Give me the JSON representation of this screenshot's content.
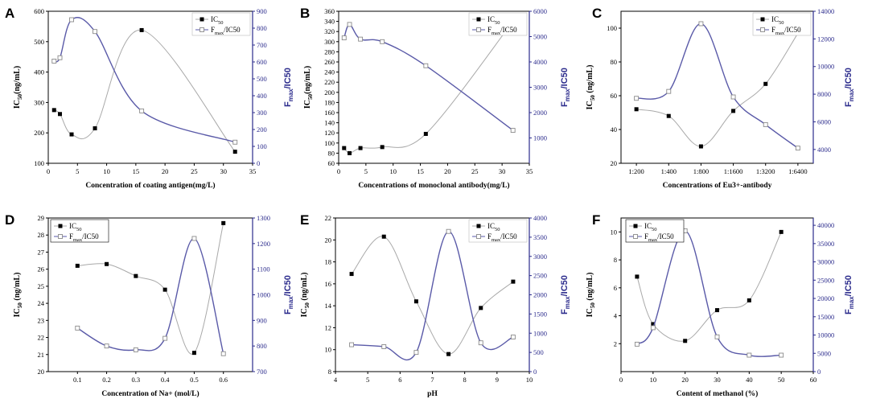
{
  "colors": {
    "s1": "#000000",
    "s2": "#5a5aa8",
    "line1": "#a9a9a9",
    "axis2": "#2b2b8c"
  },
  "chart_data": [
    {
      "type": "line",
      "panel": "A",
      "xlabel": "Concentration of coating antigen(mg/L)",
      "ylabel": "IC50(ng/mL)",
      "ylabel_main": "IC",
      "ylabel_sub": "50",
      "ylabel_tail": "(ng/mL)",
      "y2label": "Fmax/IC50",
      "y2label_main": "F",
      "y2label_sub": "max",
      "y2label_tail": "/IC50",
      "legend": [
        "IC50",
        "Fmax/IC50"
      ],
      "xlim": [
        0,
        35
      ],
      "xticks": [
        "0",
        "5",
        "10",
        "15",
        "20",
        "25",
        "30",
        "35"
      ],
      "ylim": [
        100,
        600
      ],
      "yticks": [
        "100",
        "200",
        "300",
        "400",
        "500",
        "600"
      ],
      "y2lim": [
        0,
        900
      ],
      "y2ticks": [
        "0",
        "100",
        "200",
        "300",
        "400",
        "500",
        "600",
        "700",
        "800",
        "900"
      ],
      "series": [
        {
          "name": "IC50",
          "axis": "left",
          "x": [
            1,
            2,
            4,
            8,
            16,
            32
          ],
          "values": [
            275,
            262,
            195,
            215,
            538,
            138
          ]
        },
        {
          "name": "Fmax/IC50",
          "axis": "right",
          "x": [
            1,
            2,
            4,
            8,
            16,
            32
          ],
          "values": [
            605,
            625,
            850,
            780,
            310,
            125
          ]
        }
      ]
    },
    {
      "type": "line",
      "panel": "B",
      "xlabel": "Concentrations of monoclonal antibody(mg/L)",
      "ylabel": "IC50(ng/mL)",
      "ylabel_main": "IC",
      "ylabel_sub": "50",
      "ylabel_tail": "(ng/mL)",
      "y2label": "Fmax/IC50",
      "y2label_main": "F",
      "y2label_sub": "max",
      "y2label_tail": "/IC50",
      "legend": [
        "IC50",
        "Fmax/IC50"
      ],
      "xlim": [
        0,
        35
      ],
      "xticks": [
        "0",
        "5",
        "10",
        "15",
        "20",
        "25",
        "30",
        "35"
      ],
      "ylim": [
        60,
        360
      ],
      "yticks": [
        "60",
        "80",
        "100",
        "120",
        "140",
        "160",
        "180",
        "200",
        "220",
        "240",
        "260",
        "280",
        "300",
        "320",
        "340",
        "360"
      ],
      "y2lim": [
        0,
        6000
      ],
      "y2ticks": [
        "1000",
        "2000",
        "3000",
        "4000",
        "5000",
        "6000"
      ],
      "series": [
        {
          "name": "IC50",
          "axis": "left",
          "x": [
            1,
            2,
            4,
            8,
            16,
            32
          ],
          "values": [
            90,
            80,
            90,
            92,
            118,
            340
          ]
        },
        {
          "name": "Fmax/IC50",
          "axis": "right",
          "x": [
            1,
            2,
            4,
            8,
            16,
            32
          ],
          "values": [
            4950,
            5480,
            4900,
            4800,
            3850,
            1300
          ]
        }
      ]
    },
    {
      "type": "line",
      "panel": "C",
      "xlabel": "Concentrations of Eu3+-antibody",
      "ylabel": "IC50 (ng/mL)",
      "ylabel_main": "IC",
      "ylabel_sub": "50",
      "ylabel_tail": " (ng/mL)",
      "y2label": "Fmax/IC50",
      "y2label_main": "F",
      "y2label_sub": "max",
      "y2label_tail": "/IC50",
      "legend": [
        "IC50",
        "Fmax/IC50"
      ],
      "categories": [
        "1:200",
        "1:400",
        "1:800",
        "1:1600",
        "1:3200",
        "1:6400"
      ],
      "ylim": [
        20,
        110
      ],
      "yticks": [
        "20",
        "40",
        "60",
        "80",
        "100"
      ],
      "y2lim": [
        3000,
        14000
      ],
      "y2ticks": [
        "4000",
        "6000",
        "8000",
        "10000",
        "12000",
        "14000"
      ],
      "series": [
        {
          "name": "IC50",
          "axis": "left",
          "values": [
            52,
            48,
            30,
            51,
            67,
            97
          ]
        },
        {
          "name": "Fmax/IC50",
          "axis": "right",
          "values": [
            7700,
            8200,
            13100,
            7800,
            5800,
            4100
          ]
        }
      ]
    },
    {
      "type": "line",
      "panel": "D",
      "xlabel": "Concentration of Na+ (mol/L)",
      "ylabel": "IC50 (ng/mL)",
      "ylabel_main": "IC",
      "ylabel_sub": "50",
      "ylabel_tail": " (ng/mL)",
      "y2label": "Fmax/IC50",
      "y2label_main": "F",
      "y2label_sub": "max",
      "y2label_tail": "/IC50",
      "legend": [
        "IC50",
        "Fmax/IC50"
      ],
      "xlim": [
        0.0,
        0.7
      ],
      "xticks": [
        "0.1",
        "0.2",
        "0.3",
        "0.4",
        "0.5",
        "0.6"
      ],
      "ylim": [
        20,
        29
      ],
      "yticks": [
        "20",
        "21",
        "22",
        "23",
        "24",
        "25",
        "26",
        "27",
        "28",
        "29"
      ],
      "y2lim": [
        700,
        1300
      ],
      "y2ticks": [
        "700",
        "800",
        "900",
        "1000",
        "1100",
        "1200",
        "1300"
      ],
      "series": [
        {
          "name": "IC50",
          "axis": "left",
          "x": [
            0.1,
            0.2,
            0.3,
            0.4,
            0.5,
            0.6
          ],
          "values": [
            26.2,
            26.3,
            25.6,
            24.8,
            21.1,
            28.7
          ]
        },
        {
          "name": "Fmax/IC50",
          "axis": "right",
          "x": [
            0.1,
            0.2,
            0.3,
            0.4,
            0.5,
            0.6
          ],
          "values": [
            870,
            800,
            785,
            830,
            1220,
            770
          ]
        }
      ]
    },
    {
      "type": "line",
      "panel": "E",
      "xlabel": "pH",
      "ylabel": "IC50 (ng/mL)",
      "ylabel_main": "IC",
      "ylabel_sub": "50",
      "ylabel_tail": " (ng/mL)",
      "y2label": "Fmax/IC50",
      "y2label_main": "F",
      "y2label_sub": "max",
      "y2label_tail": "/IC50",
      "legend": [
        "IC50",
        "Fmax/IC50"
      ],
      "xlim": [
        4,
        10
      ],
      "xticks": [
        "4",
        "5",
        "6",
        "7",
        "8",
        "9",
        "10"
      ],
      "ylim": [
        8,
        22
      ],
      "yticks": [
        "8",
        "10",
        "12",
        "14",
        "16",
        "18",
        "20",
        "22"
      ],
      "y2lim": [
        0,
        4000
      ],
      "y2ticks": [
        "0",
        "500",
        "1000",
        "1500",
        "2000",
        "2500",
        "3000",
        "3500",
        "4000"
      ],
      "series": [
        {
          "name": "IC50",
          "axis": "left",
          "x": [
            4.5,
            5.5,
            6.5,
            7.5,
            8.5,
            9.5
          ],
          "values": [
            16.9,
            20.3,
            14.4,
            9.6,
            13.8,
            16.2
          ]
        },
        {
          "name": "Fmax/IC50",
          "axis": "right",
          "x": [
            4.5,
            5.5,
            6.5,
            7.5,
            8.5,
            9.5
          ],
          "values": [
            700,
            650,
            500,
            3650,
            750,
            900
          ]
        }
      ]
    },
    {
      "type": "line",
      "panel": "F",
      "xlabel": "Content of methanol (%)",
      "ylabel": "IC50 (ng/mL)",
      "ylabel_main": "IC",
      "ylabel_sub": "50",
      "ylabel_tail": " (ng/mL)",
      "y2label": "Fmax/IC50",
      "y2label_main": "F",
      "y2label_sub": "max",
      "y2label_tail": "/IC50",
      "legend": [
        "IC50",
        "Fmax/IC50"
      ],
      "xlim": [
        0,
        60
      ],
      "xticks": [
        "0",
        "10",
        "20",
        "30",
        "40",
        "50",
        "60"
      ],
      "ylim": [
        0,
        11
      ],
      "yticks": [
        "2",
        "4",
        "6",
        "8",
        "10"
      ],
      "y2lim": [
        0,
        42000
      ],
      "y2ticks": [
        "0",
        "5000",
        "10000",
        "15000",
        "20000",
        "25000",
        "30000",
        "35000",
        "40000"
      ],
      "series": [
        {
          "name": "IC50",
          "axis": "left",
          "x": [
            5,
            10,
            20,
            30,
            40,
            50
          ],
          "values": [
            6.8,
            3.4,
            2.2,
            4.4,
            5.1,
            10.0
          ]
        },
        {
          "name": "Fmax/IC50",
          "axis": "right",
          "x": [
            5,
            10,
            20,
            30,
            40,
            50
          ],
          "values": [
            7500,
            12000,
            38500,
            9500,
            4500,
            4500
          ]
        }
      ]
    }
  ]
}
